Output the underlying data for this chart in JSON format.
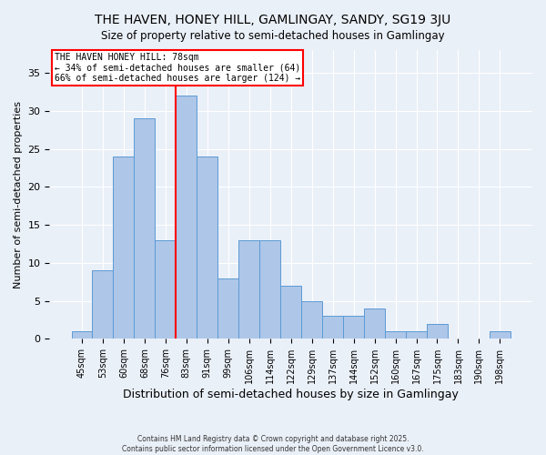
{
  "title": "THE HAVEN, HONEY HILL, GAMLINGAY, SANDY, SG19 3JU",
  "subtitle": "Size of property relative to semi-detached houses in Gamlingay",
  "xlabel": "Distribution of semi-detached houses by size in Gamlingay",
  "ylabel": "Number of semi-detached properties",
  "categories": [
    "45sqm",
    "53sqm",
    "60sqm",
    "68sqm",
    "76sqm",
    "83sqm",
    "91sqm",
    "99sqm",
    "106sqm",
    "114sqm",
    "122sqm",
    "129sqm",
    "137sqm",
    "144sqm",
    "152sqm",
    "160sqm",
    "167sqm",
    "175sqm",
    "183sqm",
    "190sqm",
    "198sqm"
  ],
  "values": [
    1,
    9,
    24,
    29,
    13,
    32,
    24,
    8,
    13,
    13,
    7,
    5,
    3,
    3,
    4,
    1,
    1,
    2,
    0,
    0,
    1
  ],
  "bar_color": "#aec6e8",
  "bar_edge_color": "#5b9bd5",
  "vline_x": 4.5,
  "vline_color": "red",
  "annotation_title": "THE HAVEN HONEY HILL: 78sqm",
  "annotation_line1": "← 34% of semi-detached houses are smaller (64)",
  "annotation_line2": "66% of semi-detached houses are larger (124) →",
  "annotation_box_color": "white",
  "annotation_box_edge": "red",
  "ylim": [
    0,
    38
  ],
  "yticks": [
    0,
    5,
    10,
    15,
    20,
    25,
    30,
    35
  ],
  "footer1": "Contains HM Land Registry data © Crown copyright and database right 2025.",
  "footer2": "Contains public sector information licensed under the Open Government Licence v3.0.",
  "bg_color": "#eaf0f8",
  "plot_bg_color": "#eaf0f8"
}
